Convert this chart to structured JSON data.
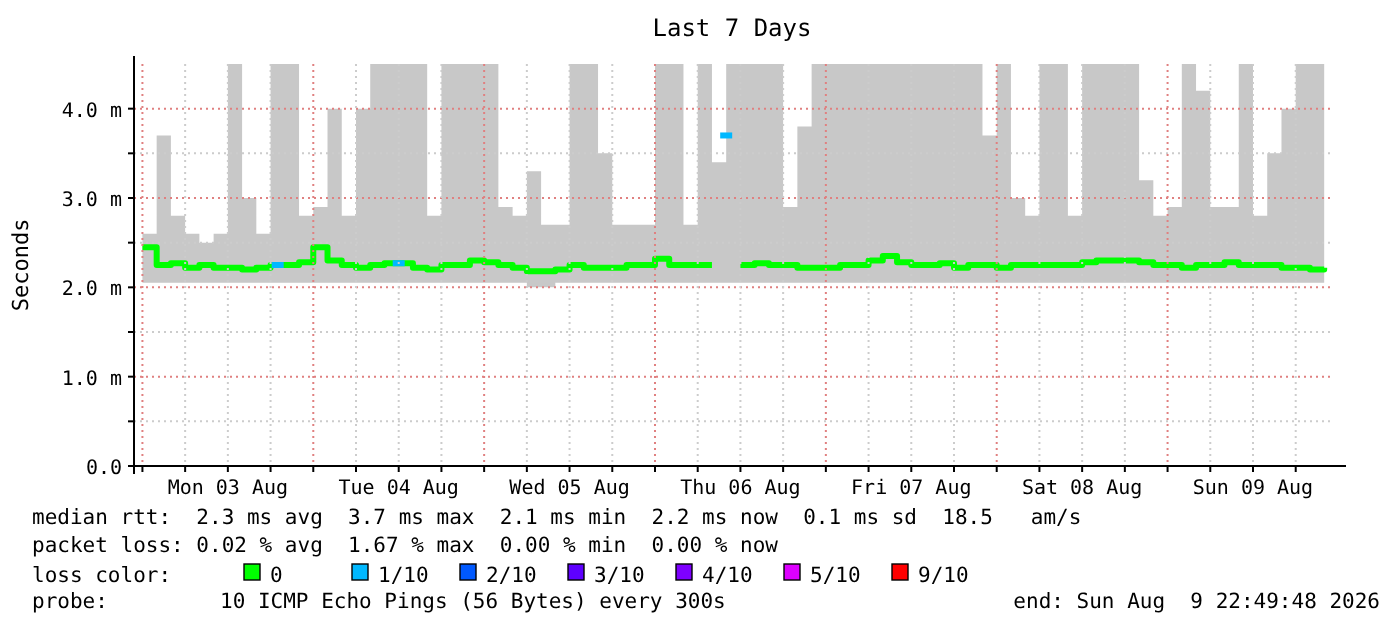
{
  "chart_data": {
    "type": "step",
    "title": "Last 7 Days",
    "ylabel": "Seconds",
    "legend_title": "loss color:",
    "legend": "bottom",
    "grid": true,
    "xlim": [
      "2026-08-02T22:49",
      "2026-08-09T22:49"
    ],
    "xticks": [
      {
        "value": "2026-08-03T00:00",
        "label": null
      },
      {
        "value": "2026-08-03T06:00",
        "label": null
      },
      {
        "value": "2026-08-03T12:00",
        "label": "Mon 03 Aug"
      },
      {
        "value": "2026-08-03T18:00",
        "label": null
      },
      {
        "value": "2026-08-04T00:00",
        "label": null
      },
      {
        "value": "2026-08-04T06:00",
        "label": null
      },
      {
        "value": "2026-08-04T12:00",
        "label": "Tue 04 Aug"
      },
      {
        "value": "2026-08-04T18:00",
        "label": null
      },
      {
        "value": "2026-08-05T00:00",
        "label": null
      },
      {
        "value": "2026-08-05T06:00",
        "label": null
      },
      {
        "value": "2026-08-05T12:00",
        "label": "Wed 05 Aug"
      },
      {
        "value": "2026-08-05T18:00",
        "label": null
      },
      {
        "value": "2026-08-06T00:00",
        "label": null
      },
      {
        "value": "2026-08-06T06:00",
        "label": null
      },
      {
        "value": "2026-08-06T12:00",
        "label": "Thu 06 Aug"
      },
      {
        "value": "2026-08-06T18:00",
        "label": null
      },
      {
        "value": "2026-08-07T00:00",
        "label": null
      },
      {
        "value": "2026-08-07T06:00",
        "label": null
      },
      {
        "value": "2026-08-07T12:00",
        "label": "Fri 07 Aug"
      },
      {
        "value": "2026-08-07T18:00",
        "label": null
      },
      {
        "value": "2026-08-08T00:00",
        "label": null
      },
      {
        "value": "2026-08-08T06:00",
        "label": null
      },
      {
        "value": "2026-08-08T12:00",
        "label": "Sat 08 Aug"
      },
      {
        "value": "2026-08-08T18:00",
        "label": null
      },
      {
        "value": "2026-08-09T00:00",
        "label": null
      },
      {
        "value": "2026-08-09T06:00",
        "label": null
      },
      {
        "value": "2026-08-09T12:00",
        "label": "Sun 09 Aug"
      },
      {
        "value": "2026-08-09T18:00",
        "label": null
      }
    ],
    "ylim": [
      0,
      4.5
    ],
    "yticks": [
      {
        "value": 0,
        "label": "0.0"
      },
      {
        "value": 0.5,
        "label": null
      },
      {
        "value": 1,
        "label": "1.0 m"
      },
      {
        "value": 1.5,
        "label": null
      },
      {
        "value": 2,
        "label": "2.0 m"
      },
      {
        "value": 2.5,
        "label": null
      },
      {
        "value": 3,
        "label": "3.0 m"
      },
      {
        "value": 3.5,
        "label": null
      },
      {
        "value": 4,
        "label": "4.0 m"
      }
    ],
    "x": [
      "2026-08-03T00:00",
      "2026-08-03T02:00",
      "2026-08-03T04:00",
      "2026-08-03T06:00",
      "2026-08-03T08:00",
      "2026-08-03T10:00",
      "2026-08-03T12:00",
      "2026-08-03T14:00",
      "2026-08-03T16:00",
      "2026-08-03T18:00",
      "2026-08-03T20:00",
      "2026-08-03T22:00",
      "2026-08-04T00:00",
      "2026-08-04T02:00",
      "2026-08-04T04:00",
      "2026-08-04T06:00",
      "2026-08-04T08:00",
      "2026-08-04T10:00",
      "2026-08-04T12:00",
      "2026-08-04T14:00",
      "2026-08-04T16:00",
      "2026-08-04T18:00",
      "2026-08-04T20:00",
      "2026-08-04T22:00",
      "2026-08-05T00:00",
      "2026-08-05T02:00",
      "2026-08-05T04:00",
      "2026-08-05T06:00",
      "2026-08-05T08:00",
      "2026-08-05T10:00",
      "2026-08-05T12:00",
      "2026-08-05T14:00",
      "2026-08-05T16:00",
      "2026-08-05T18:00",
      "2026-08-05T20:00",
      "2026-08-05T22:00",
      "2026-08-06T00:00",
      "2026-08-06T02:00",
      "2026-08-06T04:00",
      "2026-08-06T06:00",
      "2026-08-06T08:00",
      "2026-08-06T10:00",
      "2026-08-06T12:00",
      "2026-08-06T14:00",
      "2026-08-06T16:00",
      "2026-08-06T18:00",
      "2026-08-06T20:00",
      "2026-08-06T22:00",
      "2026-08-07T00:00",
      "2026-08-07T02:00",
      "2026-08-07T04:00",
      "2026-08-07T06:00",
      "2026-08-07T08:00",
      "2026-08-07T10:00",
      "2026-08-07T12:00",
      "2026-08-07T14:00",
      "2026-08-07T16:00",
      "2026-08-07T18:00",
      "2026-08-07T20:00",
      "2026-08-07T22:00",
      "2026-08-08T00:00",
      "2026-08-08T02:00",
      "2026-08-08T04:00",
      "2026-08-08T06:00",
      "2026-08-08T08:00",
      "2026-08-08T10:00",
      "2026-08-08T12:00",
      "2026-08-08T14:00",
      "2026-08-08T16:00",
      "2026-08-08T18:00",
      "2026-08-08T20:00",
      "2026-08-08T22:00",
      "2026-08-09T00:00",
      "2026-08-09T02:00",
      "2026-08-09T04:00",
      "2026-08-09T06:00",
      "2026-08-09T08:00",
      "2026-08-09T10:00",
      "2026-08-09T12:00",
      "2026-08-09T14:00",
      "2026-08-09T16:00",
      "2026-08-09T18:00",
      "2026-08-09T20:00",
      "2026-08-09T22:00"
    ],
    "series": [
      {
        "name": "0",
        "color": "#00ff00",
        "values": [
          2.45,
          2.25,
          2.27,
          2.22,
          2.25,
          2.22,
          2.22,
          2.2,
          2.22,
          2.25,
          2.25,
          2.28,
          2.45,
          2.3,
          2.25,
          2.22,
          2.25,
          2.27,
          2.27,
          2.22,
          2.2,
          2.25,
          2.25,
          2.3,
          2.28,
          2.25,
          2.22,
          2.18,
          2.18,
          2.2,
          2.25,
          2.22,
          2.22,
          2.22,
          2.25,
          2.25,
          2.32,
          2.25,
          2.25,
          2.25,
          2.25,
          null,
          2.25,
          2.27,
          2.25,
          2.25,
          2.22,
          2.22,
          2.22,
          2.25,
          2.25,
          2.3,
          2.35,
          2.28,
          2.25,
          2.25,
          2.27,
          2.22,
          2.25,
          2.25,
          2.22,
          2.25,
          2.25,
          2.25,
          2.25,
          2.25,
          2.28,
          2.3,
          2.3,
          2.3,
          2.28,
          2.25,
          2.25,
          2.22,
          2.25,
          2.25,
          2.28,
          2.25,
          2.25,
          2.25,
          2.22,
          2.22,
          2.2,
          2.22
        ],
        "lower": [
          2.05,
          2.05,
          2.05,
          2.05,
          2.05,
          2.05,
          2.05,
          2.05,
          2.05,
          2.05,
          2.05,
          2.05,
          2.05,
          2.05,
          2.05,
          2.05,
          2.05,
          2.05,
          2.05,
          2.05,
          2.05,
          2.05,
          2.05,
          2.05,
          2.05,
          2.05,
          2.05,
          2.0,
          2.0,
          2.05,
          2.05,
          2.05,
          2.05,
          2.05,
          2.05,
          2.05,
          2.05,
          2.05,
          2.05,
          2.05,
          2.05,
          2.05,
          2.05,
          2.05,
          2.05,
          2.05,
          2.05,
          2.05,
          2.05,
          2.05,
          2.05,
          2.05,
          2.05,
          2.05,
          2.05,
          2.05,
          2.05,
          2.05,
          2.05,
          2.05,
          2.05,
          2.05,
          2.05,
          2.05,
          2.05,
          2.05,
          2.05,
          2.05,
          2.05,
          2.05,
          2.05,
          2.05,
          2.05,
          2.05,
          2.05,
          2.05,
          2.05,
          2.05,
          2.05,
          2.05,
          2.05,
          2.05,
          2.05,
          2.05
        ],
        "upper": [
          2.6,
          3.7,
          2.8,
          2.6,
          2.5,
          2.6,
          4.5,
          3.0,
          2.6,
          4.5,
          4.5,
          2.8,
          2.9,
          4.0,
          2.8,
          4.0,
          4.5,
          4.5,
          4.5,
          4.5,
          2.8,
          4.5,
          4.5,
          4.5,
          4.5,
          2.9,
          2.8,
          3.3,
          2.7,
          2.7,
          4.5,
          4.5,
          3.5,
          2.7,
          2.7,
          2.7,
          4.5,
          4.5,
          2.7,
          4.5,
          3.4,
          4.5,
          4.5,
          4.5,
          4.5,
          2.9,
          3.8,
          4.5,
          4.5,
          4.5,
          4.5,
          4.5,
          4.5,
          4.5,
          4.5,
          4.5,
          4.5,
          4.5,
          4.5,
          3.7,
          4.5,
          3.0,
          2.8,
          4.5,
          4.5,
          2.8,
          4.5,
          4.5,
          4.5,
          4.5,
          3.2,
          2.8,
          2.9,
          4.5,
          4.2,
          2.9,
          2.9,
          4.5,
          2.8,
          3.5,
          4.0,
          4.5,
          4.5,
          4.5
        ]
      },
      {
        "name": "1/10",
        "color": "#00b8ff",
        "type": "scatter",
        "marker": "square",
        "x": [
          "2026-08-03T19:00",
          "2026-08-04T12:00",
          "2026-08-06T10:00"
        ],
        "values": [
          2.25,
          2.27,
          3.7
        ]
      },
      {
        "name": "2/10",
        "color": "#0059ff",
        "type": "scatter",
        "marker": "square",
        "values": [
          null,
          null,
          null,
          null,
          null,
          null,
          null,
          null,
          null,
          null,
          null,
          null,
          null,
          null,
          null,
          null,
          null,
          null,
          null,
          null,
          null,
          null,
          null,
          null,
          null,
          null,
          null,
          null,
          null,
          null,
          null,
          null,
          null,
          null,
          null,
          null,
          null,
          null,
          null,
          null,
          null,
          null,
          null,
          null,
          null,
          null,
          null,
          null,
          null,
          null,
          null,
          null,
          null,
          null,
          null,
          null,
          null,
          null,
          null,
          null,
          null,
          null,
          null,
          null,
          null,
          null,
          null,
          null,
          null,
          null,
          null,
          null,
          null,
          null,
          null,
          null,
          null,
          null,
          null,
          null,
          null,
          null,
          null,
          null
        ]
      },
      {
        "name": "3/10",
        "color": "#5e00ff",
        "type": "scatter",
        "marker": "square",
        "values": [
          null,
          null,
          null,
          null,
          null,
          null,
          null,
          null,
          null,
          null,
          null,
          null,
          null,
          null,
          null,
          null,
          null,
          null,
          null,
          null,
          null,
          null,
          null,
          null,
          null,
          null,
          null,
          null,
          null,
          null,
          null,
          null,
          null,
          null,
          null,
          null,
          null,
          null,
          null,
          null,
          null,
          null,
          null,
          null,
          null,
          null,
          null,
          null,
          null,
          null,
          null,
          null,
          null,
          null,
          null,
          null,
          null,
          null,
          null,
          null,
          null,
          null,
          null,
          null,
          null,
          null,
          null,
          null,
          null,
          null,
          null,
          null,
          null,
          null,
          null,
          null,
          null,
          null,
          null,
          null,
          null,
          null,
          null,
          null
        ]
      },
      {
        "name": "4/10",
        "color": "#7e00ff",
        "type": "scatter",
        "marker": "square",
        "values": [
          null,
          null,
          null,
          null,
          null,
          null,
          null,
          null,
          null,
          null,
          null,
          null,
          null,
          null,
          null,
          null,
          null,
          null,
          null,
          null,
          null,
          null,
          null,
          null,
          null,
          null,
          null,
          null,
          null,
          null,
          null,
          null,
          null,
          null,
          null,
          null,
          null,
          null,
          null,
          null,
          null,
          null,
          null,
          null,
          null,
          null,
          null,
          null,
          null,
          null,
          null,
          null,
          null,
          null,
          null,
          null,
          null,
          null,
          null,
          null,
          null,
          null,
          null,
          null,
          null,
          null,
          null,
          null,
          null,
          null,
          null,
          null,
          null,
          null,
          null,
          null,
          null,
          null,
          null,
          null,
          null,
          null,
          null,
          null
        ]
      },
      {
        "name": "5/10",
        "color": "#dd00ff",
        "type": "scatter",
        "marker": "square",
        "values": [
          null,
          null,
          null,
          null,
          null,
          null,
          null,
          null,
          null,
          null,
          null,
          null,
          null,
          null,
          null,
          null,
          null,
          null,
          null,
          null,
          null,
          null,
          null,
          null,
          null,
          null,
          null,
          null,
          null,
          null,
          null,
          null,
          null,
          null,
          null,
          null,
          null,
          null,
          null,
          null,
          null,
          null,
          null,
          null,
          null,
          null,
          null,
          null,
          null,
          null,
          null,
          null,
          null,
          null,
          null,
          null,
          null,
          null,
          null,
          null,
          null,
          null,
          null,
          null,
          null,
          null,
          null,
          null,
          null,
          null,
          null,
          null,
          null,
          null,
          null,
          null,
          null,
          null,
          null,
          null,
          null,
          null,
          null,
          null
        ]
      },
      {
        "name": "9/10",
        "color": "#ff0000",
        "type": "scatter",
        "marker": "square",
        "values": [
          null,
          null,
          null,
          null,
          null,
          null,
          null,
          null,
          null,
          null,
          null,
          null,
          null,
          null,
          null,
          null,
          null,
          null,
          null,
          null,
          null,
          null,
          null,
          null,
          null,
          null,
          null,
          null,
          null,
          null,
          null,
          null,
          null,
          null,
          null,
          null,
          null,
          null,
          null,
          null,
          null,
          null,
          null,
          null,
          null,
          null,
          null,
          null,
          null,
          null,
          null,
          null,
          null,
          null,
          null,
          null,
          null,
          null,
          null,
          null,
          null,
          null,
          null,
          null,
          null,
          null,
          null,
          null,
          null,
          null,
          null,
          null,
          null,
          null,
          null,
          null,
          null,
          null,
          null,
          null,
          null,
          null,
          null,
          null
        ]
      }
    ],
    "annotations": [
      "median rtt:  2.3 ms avg  3.7 ms max  2.1 ms min  2.2 ms now  0.1 ms sd  18.5   am/s",
      "packet loss: 0.02 % avg  1.67 % max  0.00 % min  0.00 % now",
      "probe:",
      "10 ICMP Echo Pings (56 Bytes) every 300s",
      "end: Sun Aug  9 22:49:48 2026"
    ]
  }
}
